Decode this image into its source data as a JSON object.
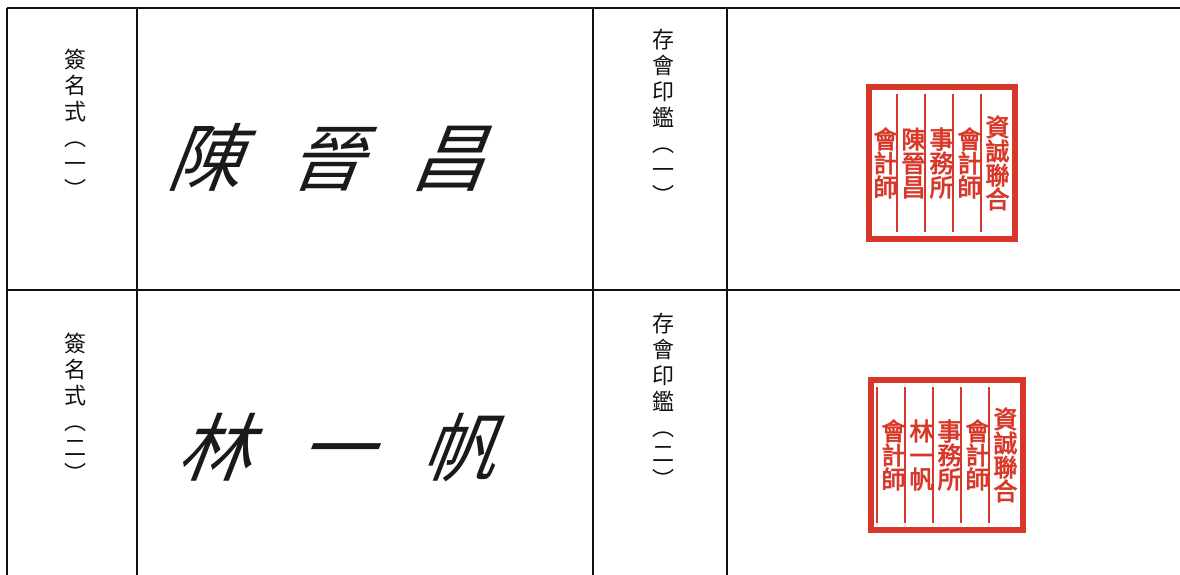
{
  "rows": [
    {
      "signature_label": "簽名式（一）",
      "signature": "陳晉昌",
      "seal_label": "存會印鑑（一）",
      "seal": [
        "資誠聯合",
        "會計師",
        "事務所",
        "陳晉昌",
        "會計師"
      ]
    },
    {
      "signature_label": "簽名式（二）",
      "signature": "林一帆",
      "seal_label": "存會印鑑（二）",
      "seal": [
        "資誠聯合",
        "會計師",
        "事務所",
        "林一帆",
        "會計師"
      ]
    }
  ]
}
